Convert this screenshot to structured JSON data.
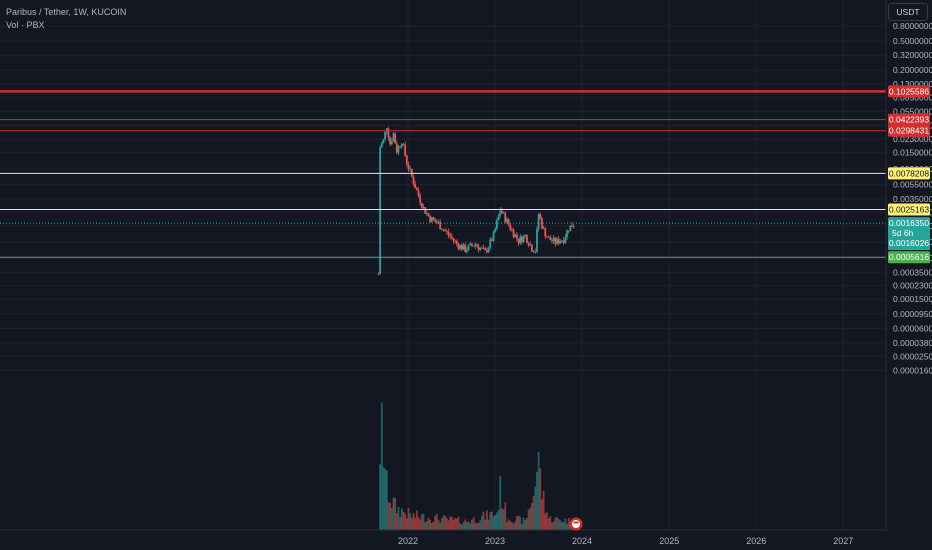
{
  "legend": {
    "symbol_line": "Paribus / Tether, 1W, KUCOIN",
    "volume_line": "Vol · PBX"
  },
  "currency_button": "USDT",
  "colors": {
    "background": "#131722",
    "grid": "#1e222d",
    "text": "#b2b5be",
    "up": "#26a69a",
    "down": "#ef5350",
    "red_line": "#d32f2f",
    "yellow_line": "#fff176",
    "green_line": "#4caf50"
  },
  "chart_data": {
    "type": "candlestick",
    "scale": "log",
    "x_tick_labels": [
      "2022",
      "2023",
      "2024",
      "2025",
      "2026",
      "2027"
    ],
    "x_tick_dates": [
      "2022-01-01",
      "2023-01-01",
      "2024-01-01",
      "2025-01-01",
      "2026-01-01",
      "2027-01-01"
    ],
    "price_axis_labels": [
      "0.8000000",
      "0.5000000",
      "0.3200000",
      "0.2000000",
      "0.1300000",
      "0.0850000",
      "0.0550000",
      "0.0350000",
      "0.0230000",
      "0.0150000",
      "0.0090000",
      "0.0055000",
      "0.0035000",
      "0.0023000",
      "0.0015000",
      "0.0009000",
      "0.0005500",
      "0.0003500",
      "0.0002300",
      "0.0001500",
      "0.0000950",
      "0.0000600",
      "0.0000380",
      "0.0000250",
      "0.0000160"
    ],
    "horizontal_levels": [
      {
        "value": "0.1025586",
        "price": 0.1025586,
        "color": "red",
        "line_width": 2.5
      },
      {
        "value": "0.0422393",
        "price": 0.0422393,
        "color": "red",
        "line_width": 1
      },
      {
        "value": "0.0298431",
        "price": 0.0298431,
        "color": "red",
        "line_width": 1
      },
      {
        "value": "0.0078208",
        "price": 0.0078208,
        "color": "yellow",
        "line_width": 1
      },
      {
        "value": "0.0025163",
        "price": 0.0025163,
        "color": "yellow",
        "line_width": 1
      },
      {
        "value": "0.0005616",
        "price": 0.0005616,
        "color": "green",
        "line_width": 1
      }
    ],
    "last_price": {
      "value": "0.0016350",
      "price": 0.001635,
      "countdown": "5d 6h",
      "secondary_value": "0.0016026"
    },
    "price_path": [
      [
        "2021-08-30",
        0.00033
      ],
      [
        "2021-09-06",
        0.018
      ],
      [
        "2021-09-20",
        0.022
      ],
      [
        "2021-10-04",
        0.035
      ],
      [
        "2021-10-18",
        0.02
      ],
      [
        "2021-11-01",
        0.027
      ],
      [
        "2021-11-15",
        0.016
      ],
      [
        "2021-12-06",
        0.022
      ],
      [
        "2021-12-27",
        0.011
      ],
      [
        "2022-01-17",
        0.007
      ],
      [
        "2022-02-07",
        0.0045
      ],
      [
        "2022-03-07",
        0.0026
      ],
      [
        "2022-04-04",
        0.0019
      ],
      [
        "2022-05-09",
        0.0016
      ],
      [
        "2022-06-13",
        0.0012
      ],
      [
        "2022-07-25",
        0.00085
      ],
      [
        "2022-08-29",
        0.00072
      ],
      [
        "2022-10-10",
        0.00085
      ],
      [
        "2022-11-21",
        0.00065
      ],
      [
        "2022-12-26",
        0.0011
      ],
      [
        "2023-01-23",
        0.0025
      ],
      [
        "2023-02-13",
        0.0019
      ],
      [
        "2023-03-13",
        0.0013
      ],
      [
        "2023-04-10",
        0.00095
      ],
      [
        "2023-05-08",
        0.0011
      ],
      [
        "2023-06-05",
        0.00075
      ],
      [
        "2023-06-19",
        0.0007
      ],
      [
        "2023-07-03",
        0.0022
      ],
      [
        "2023-07-24",
        0.0013
      ],
      [
        "2023-08-14",
        0.001
      ],
      [
        "2023-09-11",
        0.0009
      ],
      [
        "2023-10-16",
        0.001
      ],
      [
        "2023-11-06",
        0.0014
      ],
      [
        "2023-11-27",
        0.0016
      ]
    ],
    "volume": {
      "label": "Vol · PBX",
      "profile": [
        [
          "2021-08-30",
          0.0
        ],
        [
          "2021-09-13",
          0.7
        ],
        [
          "2021-10-04",
          0.3
        ],
        [
          "2021-10-25",
          0.2
        ],
        [
          "2021-11-15",
          0.15
        ],
        [
          "2022-01-17",
          0.1
        ],
        [
          "2022-05-09",
          0.08
        ],
        [
          "2022-09-05",
          0.06
        ],
        [
          "2023-01-09",
          0.12
        ],
        [
          "2023-01-23",
          0.28
        ],
        [
          "2023-02-20",
          0.09
        ],
        [
          "2023-05-08",
          0.06
        ],
        [
          "2023-07-03",
          0.38
        ],
        [
          "2023-08-14",
          0.08
        ],
        [
          "2023-11-27",
          0.06
        ]
      ],
      "spike_dates": [
        "2021-09-13",
        "2023-07-03"
      ]
    }
  }
}
